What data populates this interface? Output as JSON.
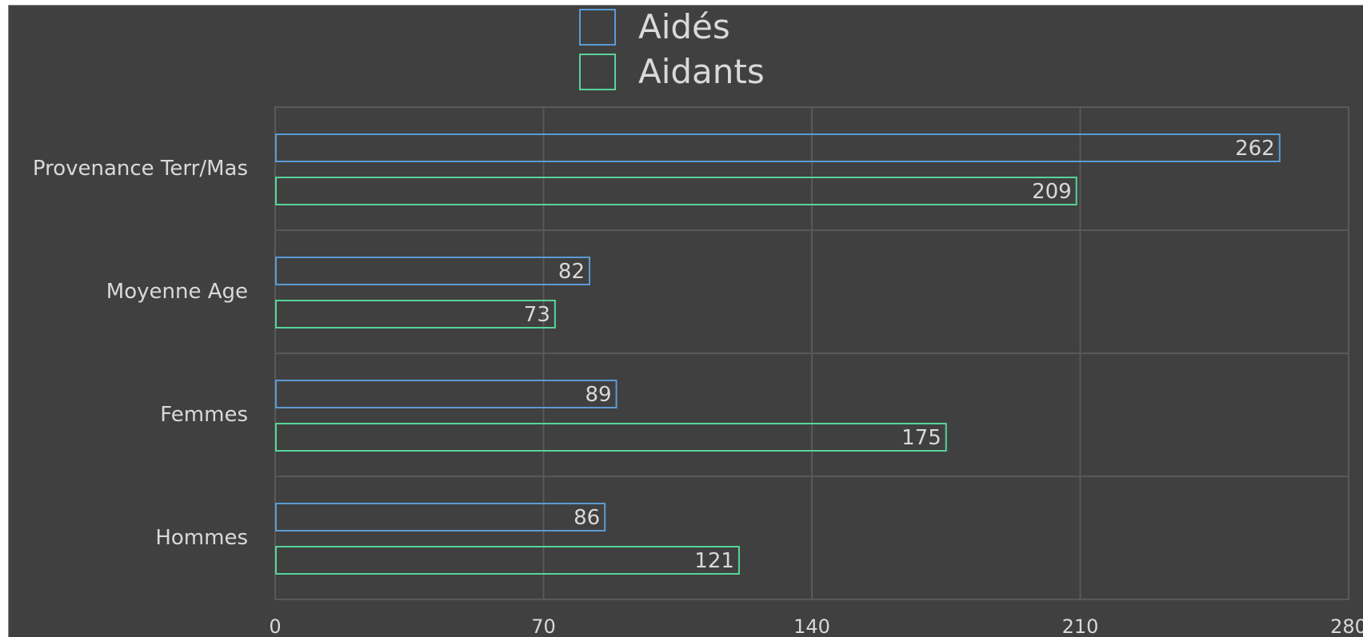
{
  "colors": {
    "background": "#404040",
    "gridline": "#595959",
    "text": "#d9d9d9",
    "aides": "#5b9bd5",
    "aidants": "#57d49a"
  },
  "chart_data": {
    "type": "bar",
    "orientation": "horizontal",
    "categories": [
      "Provenance Terr/Mas",
      "Moyenne Age",
      "Femmes",
      "Hommes"
    ],
    "series": [
      {
        "name": "Aidés",
        "values": [
          262,
          82,
          89,
          86
        ]
      },
      {
        "name": "Aidants",
        "values": [
          209,
          73,
          175,
          121
        ]
      }
    ],
    "x_ticks": [
      "0",
      "70",
      "140",
      "210",
      "280"
    ],
    "xlim": [
      0,
      280
    ],
    "grid": true,
    "legend_position": "top-center",
    "data_labels": true
  }
}
